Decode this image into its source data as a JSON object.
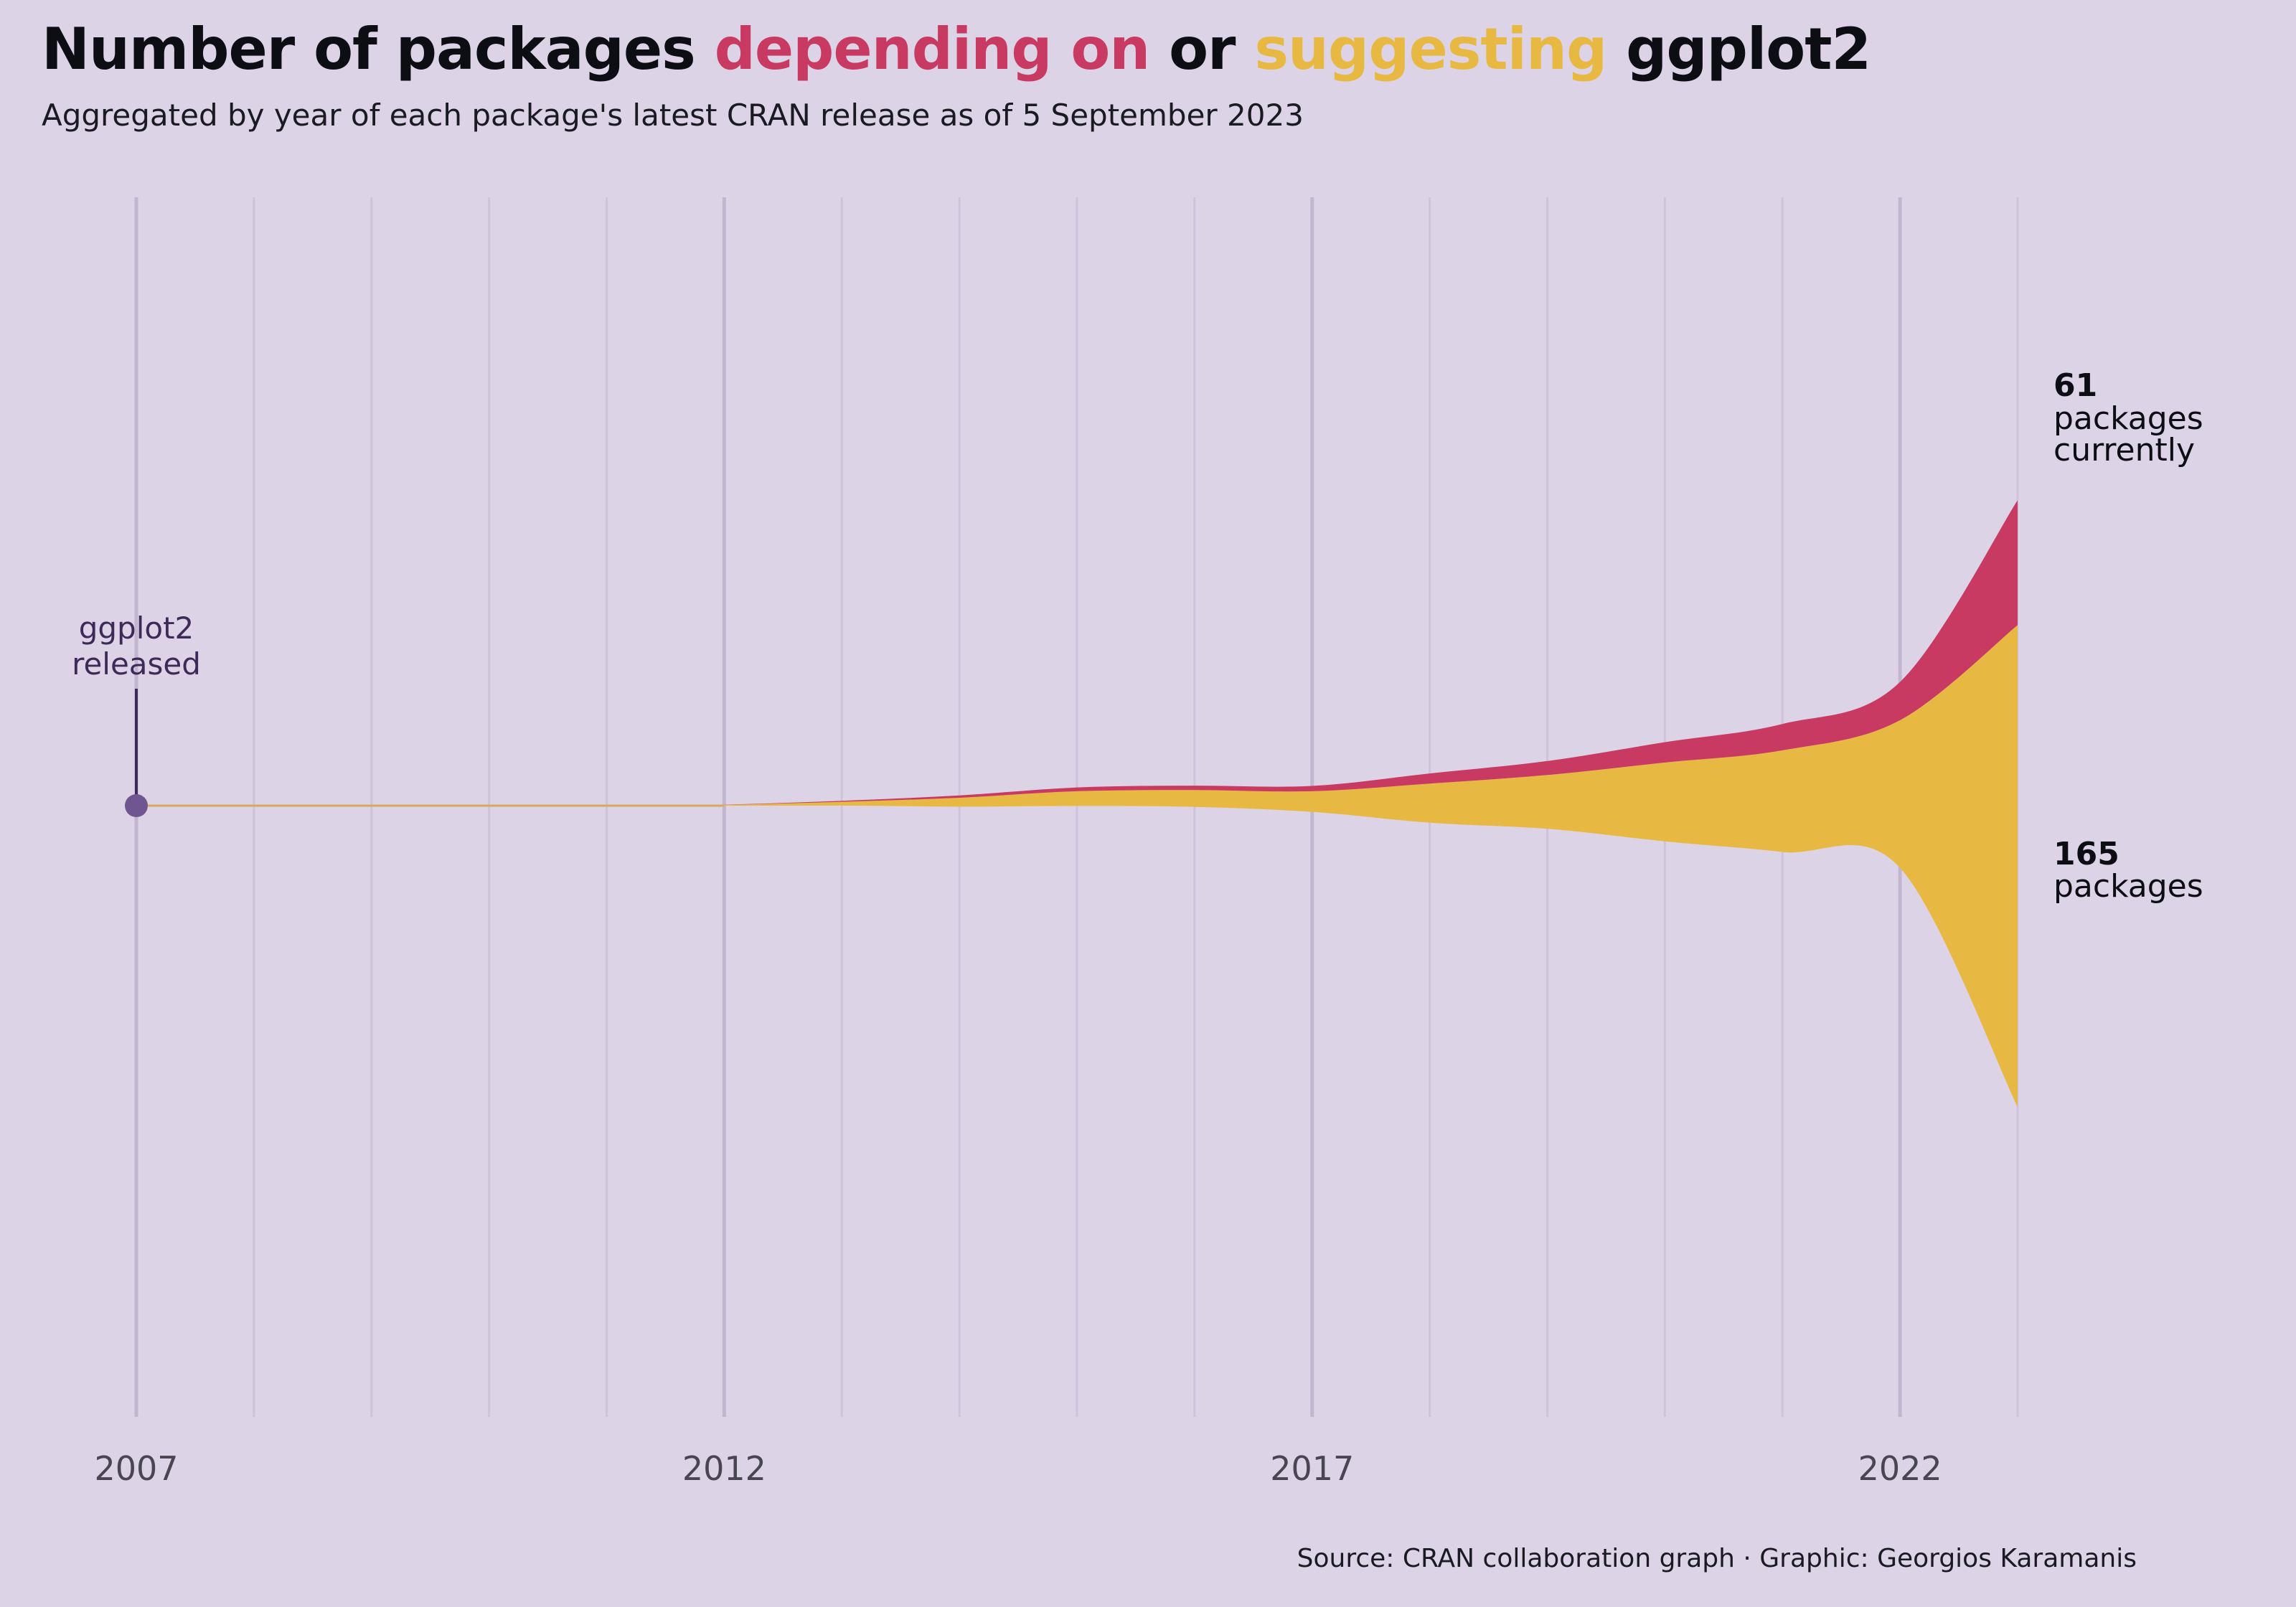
{
  "header": {
    "title_part1": "Number of packages ",
    "title_depending": "depending on",
    "title_part2": " or ",
    "title_suggesting": "suggesting",
    "title_part3": " ggplot2",
    "subtitle": "Aggregated by year of each package's latest CRAN release as of 5 September 2023"
  },
  "caption": "Source: CRAN collaboration graph · Graphic: Georgios Karamanis",
  "colors": {
    "depending": "#c93a62",
    "suggesting": "#e8b942",
    "background": "#ddd3e6",
    "annotation": "#3d2a58",
    "point": "#6f5690"
  },
  "chart_data": {
    "type": "area",
    "subtype": "streamgraph",
    "title": "Number of packages depending on or suggesting ggplot2",
    "x": [
      2007,
      2008,
      2009,
      2010,
      2011,
      2012,
      2013,
      2014,
      2015,
      2016,
      2017,
      2018,
      2019,
      2020,
      2021,
      2022,
      2023
    ],
    "series": [
      {
        "name": "depending on",
        "color": "#c93a62",
        "values": [
          0,
          0,
          0,
          0,
          0,
          0.1,
          0.6,
          1.4,
          2.8,
          3.1,
          2.9,
          4.9,
          7.2,
          10.8,
          14.5,
          24,
          61
        ]
      },
      {
        "name": "suggesting",
        "color": "#e8b942",
        "values": [
          0,
          0,
          0,
          0,
          0,
          0.1,
          0.6,
          1.6,
          2.9,
          3.4,
          4.2,
          8.8,
          12.8,
          20,
          27,
          42,
          165
        ]
      }
    ],
    "xlim": [
      2007,
      2023
    ],
    "major_ticks": [
      2007,
      2012,
      2017,
      2022
    ],
    "tick_labels": [
      "2007",
      "2012",
      "2017",
      "2022"
    ],
    "annotations": {
      "release": {
        "year": 2007,
        "text_line1": "ggplot2",
        "text_line2": "released"
      },
      "depending_end": {
        "value": "61",
        "line1": "packages",
        "line2": "currently"
      },
      "suggesting_end": {
        "value": "165",
        "line1": "packages"
      }
    },
    "grid": true,
    "legend": "none (colored title words)"
  }
}
